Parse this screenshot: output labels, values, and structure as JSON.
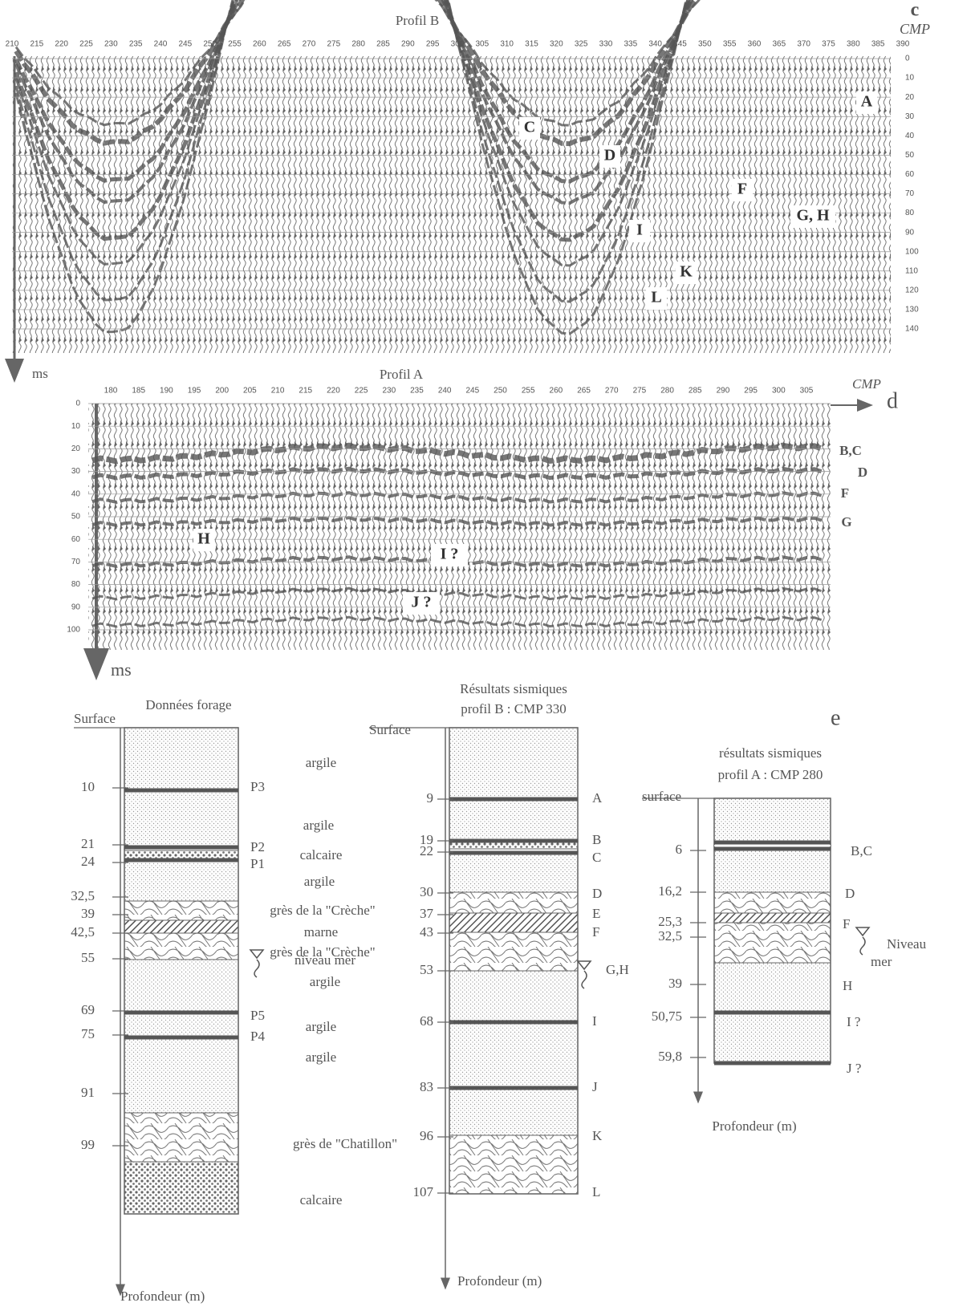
{
  "panel_c": {
    "label": "c",
    "title": "Profil B",
    "axis_label": "CMP",
    "x_ticks": [
      210,
      215,
      220,
      225,
      230,
      235,
      240,
      245,
      250,
      255,
      260,
      265,
      270,
      275,
      280,
      285,
      290,
      295,
      300,
      305,
      310,
      315,
      320,
      325,
      330,
      335,
      340,
      345,
      350,
      355,
      360,
      365,
      370,
      375,
      380,
      385,
      390
    ],
    "y_ticks": [
      0,
      10,
      20,
      30,
      40,
      50,
      60,
      70,
      80,
      90,
      100,
      110,
      120,
      130,
      140
    ],
    "y_unit": "ms",
    "horizons": [
      "A",
      "C",
      "D",
      "F",
      "G, H",
      "I",
      "K",
      "L"
    ]
  },
  "panel_d": {
    "label": "d",
    "title": "Profil A",
    "axis_label": "CMP",
    "x_ticks": [
      180,
      185,
      190,
      195,
      200,
      205,
      210,
      215,
      220,
      225,
      230,
      235,
      240,
      245,
      250,
      255,
      260,
      265,
      270,
      275,
      280,
      285,
      290,
      295,
      300,
      305
    ],
    "y_ticks": [
      0,
      10,
      20,
      30,
      40,
      50,
      60,
      70,
      80,
      90,
      100
    ],
    "y_unit": "ms",
    "horizons": [
      "H",
      "I ?",
      "J ?"
    ],
    "right_labels": [
      "B,C",
      "D",
      "F",
      "G"
    ]
  },
  "panel_e": {
    "label": "e",
    "logs": [
      {
        "title": [
          "Données forage"
        ],
        "surface": "Surface",
        "axis_label": "Profondeur (m)",
        "depths": [
          "10",
          "21",
          "24",
          "32,5",
          "39",
          "42,5",
          "55",
          "69",
          "75",
          "91",
          "99"
        ],
        "labels": [
          "argile",
          "P3",
          "argile",
          "P2",
          "calcaire",
          "P1",
          "argile",
          "grès de la \"Crèche\"",
          "marne",
          "grès de la \"Crèche\"",
          "niveau mer",
          "argile",
          "P5",
          "argile",
          "P4",
          "argile",
          "grès de \"Chatillon\"",
          "calcaire"
        ]
      },
      {
        "title": [
          "Résultats sismiques",
          "profil B : CMP 330"
        ],
        "surface": "Surface",
        "axis_label": "Profondeur (m)",
        "depths": [
          "9",
          "19",
          "22",
          "30",
          "37",
          "43",
          "53",
          "68",
          "83",
          "96",
          "107"
        ],
        "labels": [
          "A",
          "B",
          "C",
          "D",
          "E",
          "F",
          "G,H",
          "I",
          "J",
          "K",
          "L"
        ]
      },
      {
        "title": [
          "résultats sismiques",
          "profil A : CMP 280"
        ],
        "surface": "surface",
        "axis_label": "Profondeur (m)",
        "depths": [
          "6",
          "16,2",
          "25,3",
          "32,5",
          "39",
          "50,75",
          "59,8"
        ],
        "labels": [
          "B,C",
          "D",
          "F",
          "Niveau",
          "mer",
          "H",
          "I ?",
          "J ?"
        ]
      }
    ]
  }
}
